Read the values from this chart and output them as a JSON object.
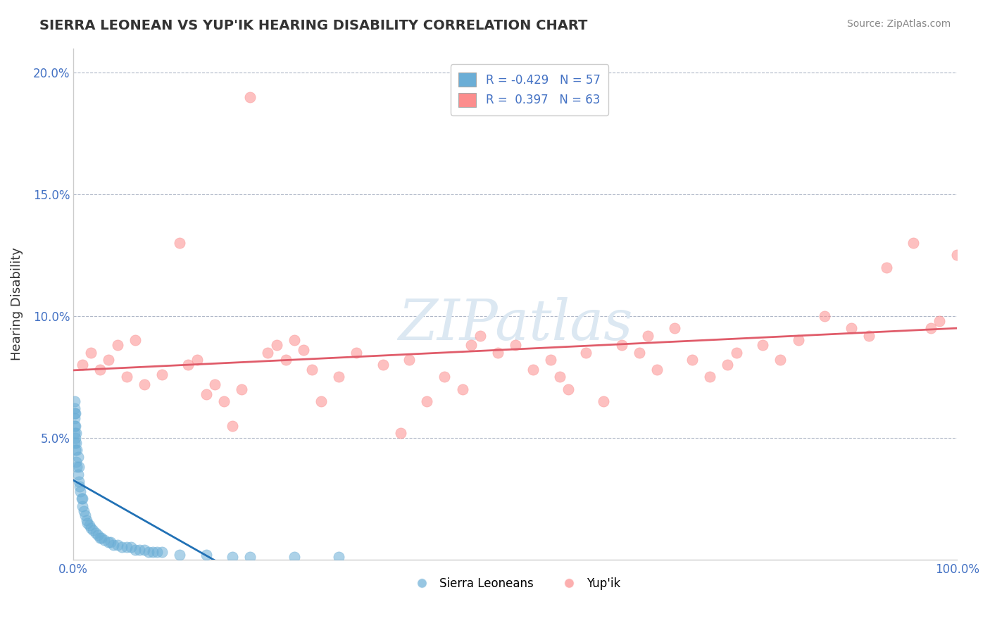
{
  "title": "SIERRA LEONEAN VS YUP'IK HEARING DISABILITY CORRELATION CHART",
  "source": "Source: ZipAtlas.com",
  "xlabel": "",
  "ylabel": "Hearing Disability",
  "xlim": [
    0,
    1.0
  ],
  "ylim": [
    0,
    0.21
  ],
  "blue_R": -0.429,
  "blue_N": 57,
  "pink_R": 0.397,
  "pink_N": 63,
  "blue_color": "#6baed6",
  "pink_color": "#fc8d8d",
  "blue_line_color": "#2171b5",
  "pink_line_color": "#e05c6a",
  "watermark_color": "#dce8f2",
  "blue_scatter_x": [
    0.001,
    0.001,
    0.001,
    0.001,
    0.001,
    0.001,
    0.001,
    0.002,
    0.002,
    0.002,
    0.002,
    0.003,
    0.003,
    0.003,
    0.004,
    0.004,
    0.005,
    0.005,
    0.006,
    0.006,
    0.007,
    0.008,
    0.009,
    0.01,
    0.01,
    0.012,
    0.013,
    0.015,
    0.016,
    0.018,
    0.02,
    0.022,
    0.025,
    0.028,
    0.03,
    0.032,
    0.035,
    0.04,
    0.042,
    0.045,
    0.05,
    0.055,
    0.06,
    0.065,
    0.07,
    0.075,
    0.08,
    0.085,
    0.09,
    0.095,
    0.1,
    0.12,
    0.15,
    0.18,
    0.2,
    0.25,
    0.3
  ],
  "blue_scatter_y": [
    0.048,
    0.052,
    0.055,
    0.058,
    0.06,
    0.062,
    0.065,
    0.045,
    0.05,
    0.055,
    0.06,
    0.04,
    0.048,
    0.052,
    0.038,
    0.045,
    0.035,
    0.042,
    0.032,
    0.038,
    0.03,
    0.028,
    0.025,
    0.022,
    0.025,
    0.02,
    0.018,
    0.016,
    0.015,
    0.014,
    0.013,
    0.012,
    0.011,
    0.01,
    0.009,
    0.009,
    0.008,
    0.007,
    0.007,
    0.006,
    0.006,
    0.005,
    0.005,
    0.005,
    0.004,
    0.004,
    0.004,
    0.003,
    0.003,
    0.003,
    0.003,
    0.002,
    0.002,
    0.001,
    0.001,
    0.001,
    0.001
  ],
  "pink_scatter_x": [
    0.01,
    0.02,
    0.03,
    0.04,
    0.05,
    0.06,
    0.07,
    0.08,
    0.1,
    0.12,
    0.13,
    0.14,
    0.15,
    0.16,
    0.17,
    0.18,
    0.19,
    0.2,
    0.22,
    0.23,
    0.24,
    0.25,
    0.26,
    0.27,
    0.28,
    0.3,
    0.32,
    0.35,
    0.37,
    0.38,
    0.4,
    0.42,
    0.44,
    0.45,
    0.46,
    0.48,
    0.5,
    0.52,
    0.54,
    0.55,
    0.56,
    0.58,
    0.6,
    0.62,
    0.64,
    0.65,
    0.66,
    0.68,
    0.7,
    0.72,
    0.74,
    0.75,
    0.78,
    0.8,
    0.82,
    0.85,
    0.88,
    0.9,
    0.92,
    0.95,
    0.97,
    0.98,
    1.0
  ],
  "pink_scatter_y": [
    0.08,
    0.085,
    0.078,
    0.082,
    0.088,
    0.075,
    0.09,
    0.072,
    0.076,
    0.13,
    0.08,
    0.082,
    0.068,
    0.072,
    0.065,
    0.055,
    0.07,
    0.19,
    0.085,
    0.088,
    0.082,
    0.09,
    0.086,
    0.078,
    0.065,
    0.075,
    0.085,
    0.08,
    0.052,
    0.082,
    0.065,
    0.075,
    0.07,
    0.088,
    0.092,
    0.085,
    0.088,
    0.078,
    0.082,
    0.075,
    0.07,
    0.085,
    0.065,
    0.088,
    0.085,
    0.092,
    0.078,
    0.095,
    0.082,
    0.075,
    0.08,
    0.085,
    0.088,
    0.082,
    0.09,
    0.1,
    0.095,
    0.092,
    0.12,
    0.13,
    0.095,
    0.098,
    0.125
  ]
}
